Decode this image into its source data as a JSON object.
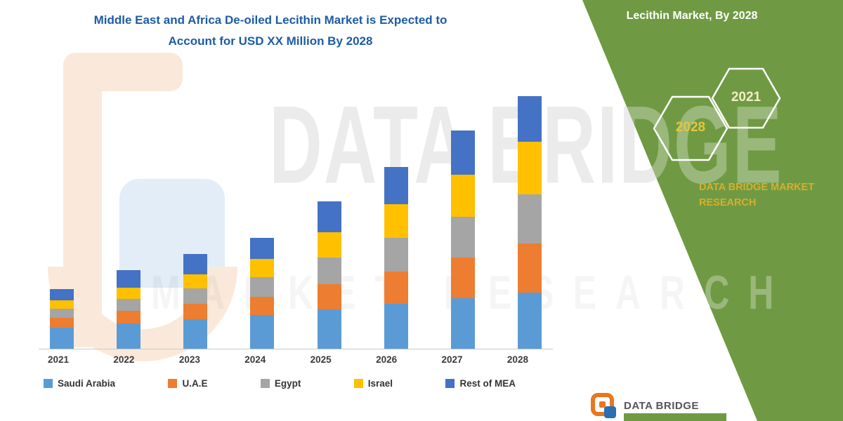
{
  "title": {
    "line1": "Middle East and Africa De-oiled Lecithin Market is Expected to",
    "line2": "Account for USD XX Million By 2028",
    "color": "#1d5ca4"
  },
  "side_panel": {
    "heading": "Lecithin Market, By 2028",
    "hexagons": [
      {
        "year": "2028"
      },
      {
        "year": "2021"
      }
    ],
    "brand_line1": "DATA BRIDGE MARKET",
    "brand_line2": "RESEARCH",
    "green": "#6f9a43",
    "accent_yellow": "#e5c53e"
  },
  "watermark": {
    "line1": "DATA BRIDGE",
    "line2": "MARKET RESEARCH"
  },
  "footer": {
    "brand": "DATA BRIDGE"
  },
  "chart_data": {
    "type": "bar",
    "stacked": true,
    "title": "Middle East and Africa De-oiled Lecithin Market is Expected to Account for USD XX Million By 2028",
    "categories": [
      "2021",
      "2022",
      "2023",
      "2024",
      "2025",
      "2026",
      "2027",
      "2028"
    ],
    "series": [
      {
        "name": "Saudi Arabia",
        "color": "#5b9bd5",
        "values": [
          30,
          36,
          42,
          48,
          56,
          64,
          72,
          80
        ]
      },
      {
        "name": "U.A.E",
        "color": "#ed7d31",
        "values": [
          14,
          18,
          22,
          26,
          36,
          46,
          58,
          70
        ]
      },
      {
        "name": "Egypt",
        "color": "#a5a5a5",
        "values": [
          13,
          17,
          22,
          28,
          38,
          48,
          58,
          70
        ]
      },
      {
        "name": "Israel",
        "color": "#ffc000",
        "values": [
          12,
          16,
          20,
          26,
          36,
          48,
          60,
          75
        ]
      },
      {
        "name": "Rest of MEA",
        "color": "#4472c4",
        "values": [
          16,
          25,
          29,
          30,
          44,
          53,
          63,
          65
        ]
      }
    ],
    "xlabel": "",
    "ylabel": "",
    "ylim": [
      0,
      385
    ],
    "grid": false,
    "legend_position": "bottom"
  }
}
